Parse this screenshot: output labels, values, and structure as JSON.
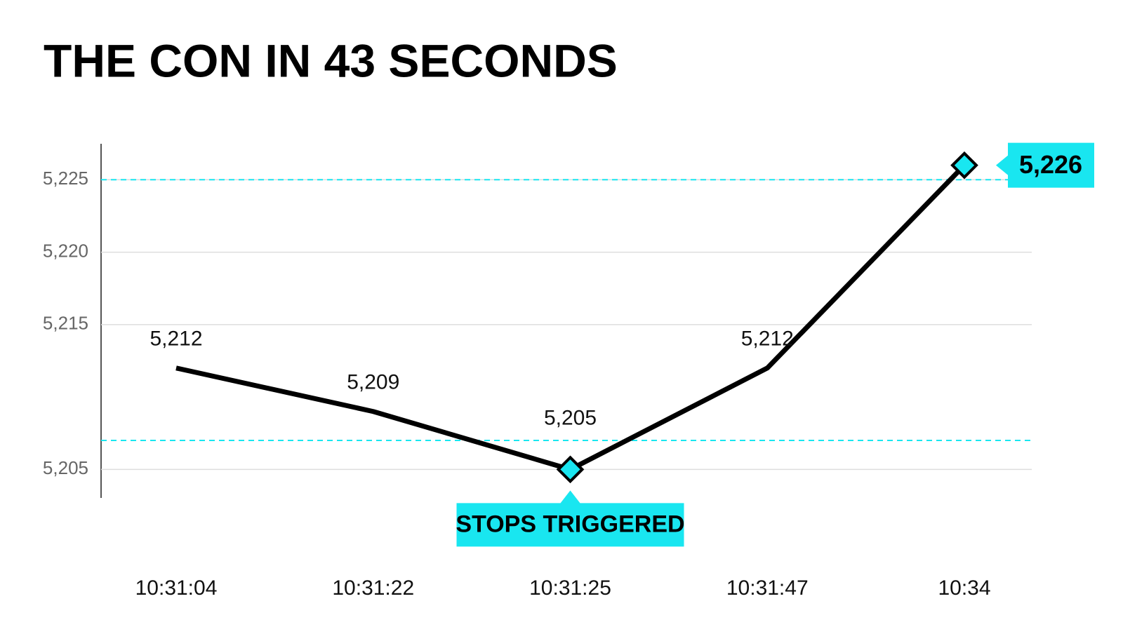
{
  "chart_data": {
    "type": "line",
    "title": "THE CON IN 43 SECONDS",
    "categories": [
      "10:31:04",
      "10:31:22",
      "10:31:25",
      "10:31:47",
      "10:34"
    ],
    "series": [
      {
        "color": "#000000",
        "values": [
          5212,
          5209,
          5205,
          5212,
          5226
        ],
        "value_labels": [
          "5,212",
          "5,209",
          "5,205",
          "5,212",
          "5,226"
        ]
      }
    ],
    "ylim": [
      5204,
      5227
    ],
    "yticks": [
      {
        "value": 5205,
        "label": "5,205"
      },
      {
        "value": 5215,
        "label": "5,215"
      },
      {
        "value": 5220,
        "label": "5,220"
      },
      {
        "value": 5225,
        "label": "5,225"
      }
    ],
    "grid": true,
    "reference_lines": [
      5207,
      5225
    ],
    "highlight_color": "#19e6f0",
    "highlight": [
      2,
      4
    ],
    "boxed_label": 4,
    "annotation": {
      "text": "STOPS TRIGGERED",
      "index": 2
    }
  }
}
